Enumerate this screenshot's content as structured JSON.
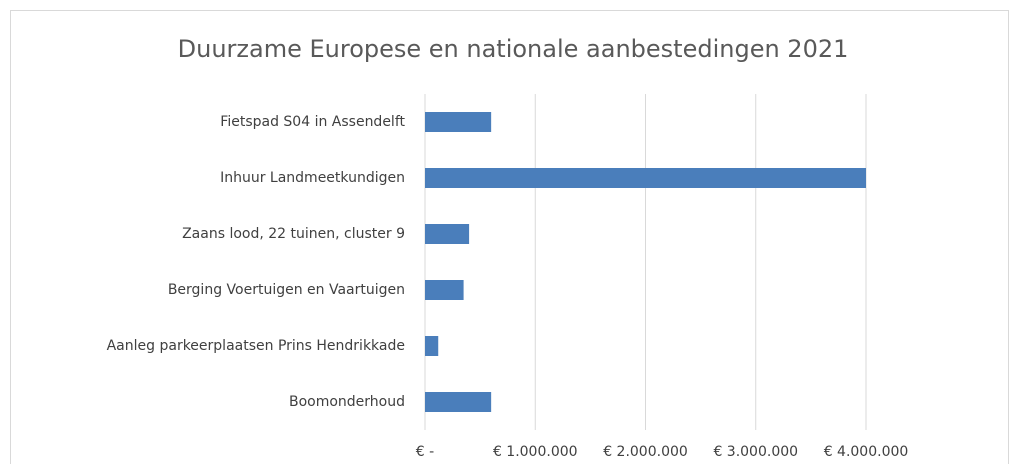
{
  "chart_data": {
    "type": "bar",
    "orientation": "horizontal",
    "title": "Duurzame Europese en nationale aanbestedingen 2021",
    "categories": [
      "Fietspad S04 in Assendelft",
      "Inhuur Landmeetkundigen",
      "Zaans lood, 22 tuinen, cluster 9",
      "Berging Voertuigen en Vaartuigen",
      "Aanleg parkeerplaatsen Prins Hendrikkade",
      "Boomonderhoud"
    ],
    "values": [
      600000,
      4000000,
      400000,
      350000,
      120000,
      600000
    ],
    "color": "#4a7ebb",
    "xlim": [
      0,
      4000000
    ],
    "xticks": [
      {
        "value": 0,
        "label": "€ -"
      },
      {
        "value": 1000000,
        "label": "€ 1.000.000"
      },
      {
        "value": 2000000,
        "label": "€ 2.000.000"
      },
      {
        "value": 3000000,
        "label": "€ 3.000.000"
      },
      {
        "value": 4000000,
        "label": "€ 4.000.000"
      }
    ],
    "grid": true
  }
}
